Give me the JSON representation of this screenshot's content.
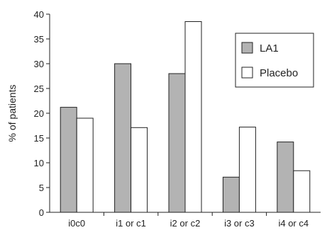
{
  "chart_data": {
    "type": "bar",
    "categories": [
      "i0c0",
      "i1 or c1",
      "i2 or c2",
      "i3 or c3",
      "i4 or c4"
    ],
    "series": [
      {
        "name": "LA1",
        "values": [
          21.2,
          30.0,
          28.0,
          7.1,
          14.2
        ],
        "color": "#b3b3b3"
      },
      {
        "name": "Placebo",
        "values": [
          19.0,
          17.1,
          38.5,
          17.2,
          8.4
        ],
        "color": "#ffffff"
      }
    ],
    "ylabel": "% of patients",
    "xlabel": "",
    "ylim": [
      0,
      40
    ],
    "yticks": [
      0,
      5,
      10,
      15,
      20,
      25,
      30,
      35,
      40
    ],
    "grid": false,
    "legend_position": "top-right"
  }
}
